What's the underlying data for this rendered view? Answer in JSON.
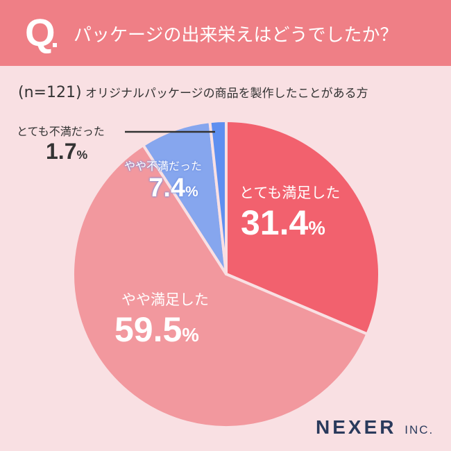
{
  "header": {
    "q": "Q",
    "title": "パッケージの出来栄えはどうでしたか？"
  },
  "subtitle": {
    "n": "(n=121)",
    "text": "オリジナルパッケージの商品を製作したことがある方"
  },
  "logo": {
    "main": "NEXER",
    "suffix": "INC."
  },
  "chart_data": {
    "type": "pie",
    "title": "パッケージの出来栄えはどうでしたか？",
    "start": "top",
    "direction": "clockwise",
    "slices": [
      {
        "label": "とても満足した",
        "value": 31.4,
        "display": "31.4",
        "color": "#f2616e"
      },
      {
        "label": "やや満足した",
        "value": 59.5,
        "display": "59.5",
        "color": "#f2989e"
      },
      {
        "label": "やや不満だった",
        "value": 7.4,
        "display": "7.4",
        "color": "#86a6ee"
      },
      {
        "label": "とても不満だった",
        "value": 1.7,
        "display": "1.7",
        "color": "#5f8ff0"
      }
    ],
    "unit": "%",
    "separator_color": "#f9e0e3"
  }
}
